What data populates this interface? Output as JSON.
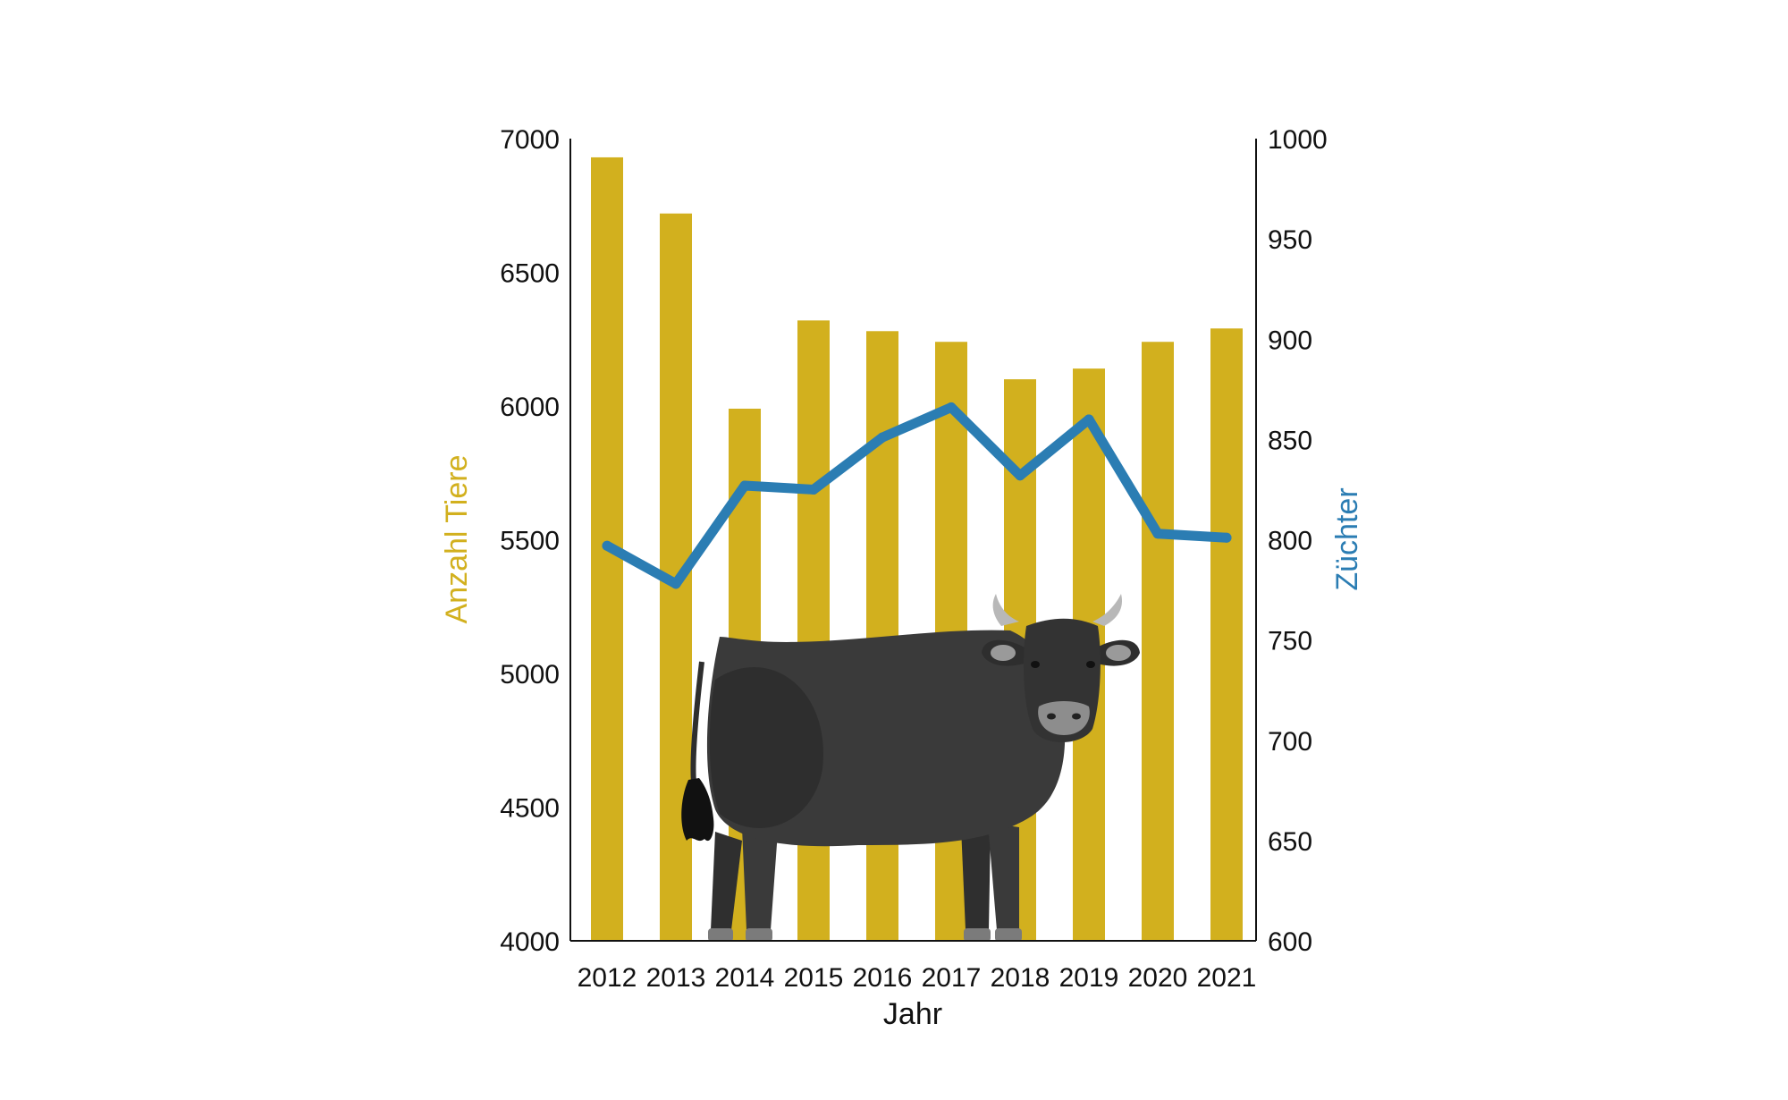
{
  "chart_data": {
    "type": "bar+line",
    "categories": [
      "2012",
      "2013",
      "2014",
      "2015",
      "2016",
      "2017",
      "2018",
      "2019",
      "2020",
      "2021"
    ],
    "series": [
      {
        "axis": "left",
        "kind": "bar",
        "color": "#d2b01e",
        "values": [
          6930,
          6720,
          5990,
          6320,
          6280,
          6240,
          6100,
          6140,
          6240,
          6290
        ]
      },
      {
        "axis": "right",
        "kind": "line",
        "color": "#2b7db3",
        "values": [
          797,
          778,
          827,
          825,
          851,
          866,
          832,
          860,
          803,
          801
        ]
      }
    ],
    "xlabel": "Jahr",
    "ylabel_left": "Anzahl Tiere",
    "ylabel_right": "Züchter",
    "ylim_left": [
      4000,
      7000
    ],
    "ylim_right": [
      600,
      1000
    ],
    "yticks_left": [
      4000,
      4500,
      5000,
      5500,
      6000,
      6500,
      7000
    ],
    "yticks_right": [
      600,
      650,
      700,
      750,
      800,
      850,
      900,
      950,
      1000
    ],
    "grid": false,
    "illustration": "cow-illustration"
  }
}
